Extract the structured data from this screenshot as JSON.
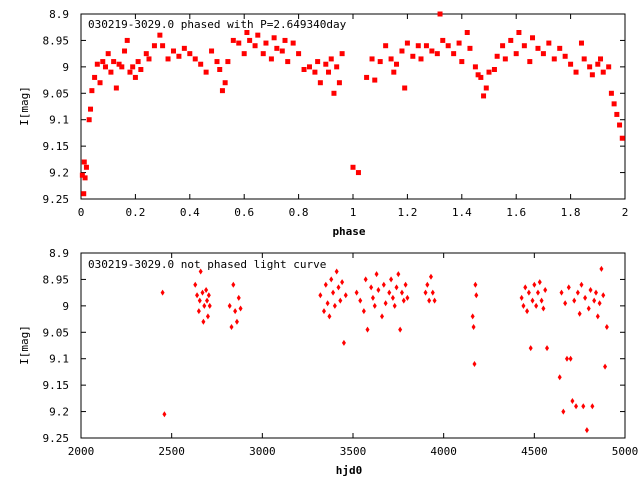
{
  "chart_data": [
    {
      "type": "scatter",
      "title": "030219-3029.0 phased with P=2.649340day",
      "xlabel": "phase",
      "ylabel": "I[mag]",
      "xlim": [
        0,
        2
      ],
      "ylim": [
        9.25,
        8.9
      ],
      "y_inverted": true,
      "xticks": [
        "0",
        "0.2",
        "0.4",
        "0.6",
        "0.8",
        "1",
        "1.2",
        "1.4",
        "1.6",
        "1.8",
        "2"
      ],
      "xtick_values": [
        0,
        0.2,
        0.4,
        0.6,
        0.8,
        1.0,
        1.2,
        1.4,
        1.6,
        1.8,
        2.0
      ],
      "yticks": [
        "8.9",
        "8.95",
        "9",
        "9.05",
        "9.1",
        "9.15",
        "9.2",
        "9.25"
      ],
      "ytick_values": [
        8.9,
        8.95,
        9.0,
        9.05,
        9.1,
        9.15,
        9.2,
        9.25
      ],
      "marker_color": "#ff0000",
      "marker": "filled-square",
      "series": [
        {
          "points": [
            [
              0.005,
              9.205
            ],
            [
              0.01,
              9.24
            ],
            [
              0.012,
              9.18
            ],
            [
              0.015,
              9.21
            ],
            [
              0.02,
              9.19
            ],
            [
              0.03,
              9.1
            ],
            [
              0.035,
              9.08
            ],
            [
              0.04,
              9.045
            ],
            [
              0.05,
              9.02
            ],
            [
              0.06,
              8.995
            ],
            [
              0.07,
              9.03
            ],
            [
              0.08,
              8.99
            ],
            [
              0.09,
              9.0
            ],
            [
              0.1,
              8.975
            ],
            [
              0.11,
              9.01
            ],
            [
              0.12,
              8.99
            ],
            [
              0.13,
              9.04
            ],
            [
              0.14,
              8.995
            ],
            [
              0.15,
              9.0
            ],
            [
              0.16,
              8.97
            ],
            [
              0.17,
              8.95
            ],
            [
              0.18,
              9.01
            ],
            [
              0.19,
              9.0
            ],
            [
              0.2,
              9.02
            ],
            [
              0.21,
              8.99
            ],
            [
              0.22,
              9.005
            ],
            [
              0.24,
              8.975
            ],
            [
              0.25,
              8.985
            ],
            [
              0.27,
              8.96
            ],
            [
              0.29,
              8.94
            ],
            [
              0.3,
              8.96
            ],
            [
              0.32,
              8.985
            ],
            [
              0.34,
              8.97
            ],
            [
              0.36,
              8.98
            ],
            [
              0.38,
              8.965
            ],
            [
              0.4,
              8.975
            ],
            [
              0.42,
              8.985
            ],
            [
              0.44,
              8.995
            ],
            [
              0.46,
              9.01
            ],
            [
              0.48,
              8.97
            ],
            [
              0.5,
              8.99
            ],
            [
              0.51,
              9.005
            ],
            [
              0.52,
              9.045
            ],
            [
              0.53,
              9.03
            ],
            [
              0.54,
              8.99
            ],
            [
              0.56,
              8.95
            ],
            [
              0.58,
              8.955
            ],
            [
              0.6,
              8.975
            ],
            [
              0.61,
              8.935
            ],
            [
              0.62,
              8.95
            ],
            [
              0.64,
              8.96
            ],
            [
              0.65,
              8.94
            ],
            [
              0.67,
              8.975
            ],
            [
              0.68,
              8.955
            ],
            [
              0.7,
              8.985
            ],
            [
              0.71,
              8.945
            ],
            [
              0.72,
              8.965
            ],
            [
              0.74,
              8.97
            ],
            [
              0.75,
              8.95
            ],
            [
              0.76,
              8.99
            ],
            [
              0.78,
              8.955
            ],
            [
              0.8,
              8.975
            ],
            [
              0.82,
              9.005
            ],
            [
              0.84,
              9.0
            ],
            [
              0.86,
              9.01
            ],
            [
              0.87,
              8.99
            ],
            [
              0.88,
              9.03
            ],
            [
              0.9,
              8.995
            ],
            [
              0.91,
              9.01
            ],
            [
              0.92,
              8.985
            ],
            [
              0.93,
              9.05
            ],
            [
              0.94,
              9.0
            ],
            [
              0.95,
              9.03
            ],
            [
              0.96,
              8.975
            ],
            [
              1.0,
              9.19
            ],
            [
              1.02,
              9.2
            ],
            [
              1.05,
              9.02
            ],
            [
              1.07,
              8.985
            ],
            [
              1.08,
              9.025
            ],
            [
              1.1,
              8.99
            ],
            [
              1.12,
              8.96
            ],
            [
              1.14,
              8.985
            ],
            [
              1.15,
              9.01
            ],
            [
              1.16,
              8.995
            ],
            [
              1.18,
              8.97
            ],
            [
              1.19,
              9.04
            ],
            [
              1.2,
              8.955
            ],
            [
              1.22,
              8.98
            ],
            [
              1.24,
              8.96
            ],
            [
              1.25,
              8.985
            ],
            [
              1.27,
              8.96
            ],
            [
              1.29,
              8.97
            ],
            [
              1.31,
              8.975
            ],
            [
              1.32,
              8.9
            ],
            [
              1.33,
              8.95
            ],
            [
              1.35,
              8.96
            ],
            [
              1.37,
              8.975
            ],
            [
              1.39,
              8.955
            ],
            [
              1.4,
              8.99
            ],
            [
              1.42,
              8.935
            ],
            [
              1.43,
              8.965
            ],
            [
              1.45,
              9.0
            ],
            [
              1.46,
              9.015
            ],
            [
              1.47,
              9.02
            ],
            [
              1.48,
              9.055
            ],
            [
              1.49,
              9.04
            ],
            [
              1.5,
              9.01
            ],
            [
              1.52,
              9.005
            ],
            [
              1.53,
              8.98
            ],
            [
              1.55,
              8.96
            ],
            [
              1.56,
              8.985
            ],
            [
              1.58,
              8.95
            ],
            [
              1.6,
              8.975
            ],
            [
              1.61,
              8.935
            ],
            [
              1.63,
              8.96
            ],
            [
              1.65,
              8.99
            ],
            [
              1.66,
              8.945
            ],
            [
              1.68,
              8.965
            ],
            [
              1.7,
              8.975
            ],
            [
              1.72,
              8.955
            ],
            [
              1.74,
              8.985
            ],
            [
              1.76,
              8.965
            ],
            [
              1.78,
              8.98
            ],
            [
              1.8,
              8.995
            ],
            [
              1.82,
              9.01
            ],
            [
              1.84,
              8.955
            ],
            [
              1.85,
              8.985
            ],
            [
              1.87,
              9.0
            ],
            [
              1.88,
              9.015
            ],
            [
              1.9,
              8.995
            ],
            [
              1.91,
              8.985
            ],
            [
              1.92,
              9.01
            ],
            [
              1.94,
              9.0
            ],
            [
              1.95,
              9.05
            ],
            [
              1.96,
              9.07
            ],
            [
              1.97,
              9.09
            ],
            [
              1.98,
              9.11
            ],
            [
              1.99,
              9.135
            ]
          ]
        }
      ]
    },
    {
      "type": "scatter",
      "title": "030219-3029.0 not phased light curve",
      "xlabel": "hjd0",
      "ylabel": "I[mag]",
      "xlim": [
        2000,
        5000
      ],
      "ylim": [
        9.25,
        8.9
      ],
      "y_inverted": true,
      "xticks": [
        "2000",
        "2500",
        "3000",
        "3500",
        "4000",
        "4500",
        "5000"
      ],
      "xtick_values": [
        2000,
        2500,
        3000,
        3500,
        4000,
        4500,
        5000
      ],
      "yticks": [
        "8.9",
        "8.95",
        "9",
        "9.05",
        "9.1",
        "9.15",
        "9.2",
        "9.25"
      ],
      "ytick_values": [
        8.9,
        8.95,
        9.0,
        9.05,
        9.1,
        9.15,
        9.2,
        9.25
      ],
      "marker_color": "#ff0000",
      "marker": "filled-diamond",
      "series": [
        {
          "points": [
            [
              2450,
              8.975
            ],
            [
              2460,
              9.205
            ],
            [
              2630,
              8.96
            ],
            [
              2640,
              8.98
            ],
            [
              2650,
              9.01
            ],
            [
              2655,
              8.99
            ],
            [
              2660,
              8.935
            ],
            [
              2670,
              8.975
            ],
            [
              2675,
              9.03
            ],
            [
              2680,
              9.0
            ],
            [
              2690,
              8.97
            ],
            [
              2695,
              8.99
            ],
            [
              2700,
              9.02
            ],
            [
              2705,
              8.98
            ],
            [
              2710,
              9.0
            ],
            [
              2820,
              9.0
            ],
            [
              2830,
              9.04
            ],
            [
              2840,
              8.96
            ],
            [
              2850,
              9.01
            ],
            [
              2860,
              9.03
            ],
            [
              2870,
              8.985
            ],
            [
              2880,
              9.005
            ],
            [
              3320,
              8.98
            ],
            [
              3340,
              9.01
            ],
            [
              3350,
              8.96
            ],
            [
              3360,
              8.995
            ],
            [
              3370,
              9.02
            ],
            [
              3380,
              8.95
            ],
            [
              3390,
              8.975
            ],
            [
              3400,
              9.0
            ],
            [
              3410,
              8.935
            ],
            [
              3420,
              8.965
            ],
            [
              3430,
              8.99
            ],
            [
              3440,
              8.955
            ],
            [
              3450,
              9.07
            ],
            [
              3460,
              8.98
            ],
            [
              3520,
              8.975
            ],
            [
              3540,
              8.99
            ],
            [
              3560,
              9.01
            ],
            [
              3570,
              8.95
            ],
            [
              3580,
              9.045
            ],
            [
              3600,
              8.965
            ],
            [
              3610,
              8.985
            ],
            [
              3620,
              9.0
            ],
            [
              3630,
              8.94
            ],
            [
              3640,
              8.97
            ],
            [
              3660,
              9.02
            ],
            [
              3670,
              8.96
            ],
            [
              3680,
              8.995
            ],
            [
              3700,
              8.975
            ],
            [
              3710,
              8.95
            ],
            [
              3720,
              8.985
            ],
            [
              3730,
              9.0
            ],
            [
              3740,
              8.965
            ],
            [
              3750,
              8.94
            ],
            [
              3760,
              9.045
            ],
            [
              3770,
              8.975
            ],
            [
              3780,
              8.99
            ],
            [
              3790,
              8.96
            ],
            [
              3800,
              8.985
            ],
            [
              3900,
              8.975
            ],
            [
              3910,
              8.96
            ],
            [
              3920,
              8.99
            ],
            [
              3930,
              8.945
            ],
            [
              3940,
              8.975
            ],
            [
              3950,
              8.99
            ],
            [
              4160,
              9.02
            ],
            [
              4165,
              9.04
            ],
            [
              4170,
              9.11
            ],
            [
              4180,
              8.98
            ],
            [
              4175,
              8.96
            ],
            [
              4430,
              8.985
            ],
            [
              4440,
              9.0
            ],
            [
              4450,
              8.965
            ],
            [
              4460,
              9.01
            ],
            [
              4470,
              8.975
            ],
            [
              4480,
              9.08
            ],
            [
              4490,
              8.99
            ],
            [
              4500,
              8.96
            ],
            [
              4510,
              9.0
            ],
            [
              4520,
              8.975
            ],
            [
              4530,
              8.955
            ],
            [
              4540,
              8.99
            ],
            [
              4550,
              9.005
            ],
            [
              4560,
              8.97
            ],
            [
              4570,
              9.08
            ],
            [
              4640,
              9.135
            ],
            [
              4650,
              8.975
            ],
            [
              4660,
              9.2
            ],
            [
              4670,
              8.995
            ],
            [
              4680,
              9.1
            ],
            [
              4690,
              8.965
            ],
            [
              4700,
              9.1
            ],
            [
              4710,
              9.18
            ],
            [
              4720,
              8.99
            ],
            [
              4730,
              9.19
            ],
            [
              4740,
              8.975
            ],
            [
              4750,
              9.015
            ],
            [
              4760,
              8.96
            ],
            [
              4770,
              9.19
            ],
            [
              4780,
              8.985
            ],
            [
              4790,
              9.235
            ],
            [
              4800,
              9.005
            ],
            [
              4810,
              8.97
            ],
            [
              4820,
              9.19
            ],
            [
              4830,
              8.99
            ],
            [
              4840,
              8.975
            ],
            [
              4850,
              9.02
            ],
            [
              4860,
              8.995
            ],
            [
              4870,
              8.93
            ],
            [
              4880,
              8.98
            ],
            [
              4890,
              9.115
            ],
            [
              4900,
              9.04
            ]
          ]
        }
      ]
    }
  ]
}
